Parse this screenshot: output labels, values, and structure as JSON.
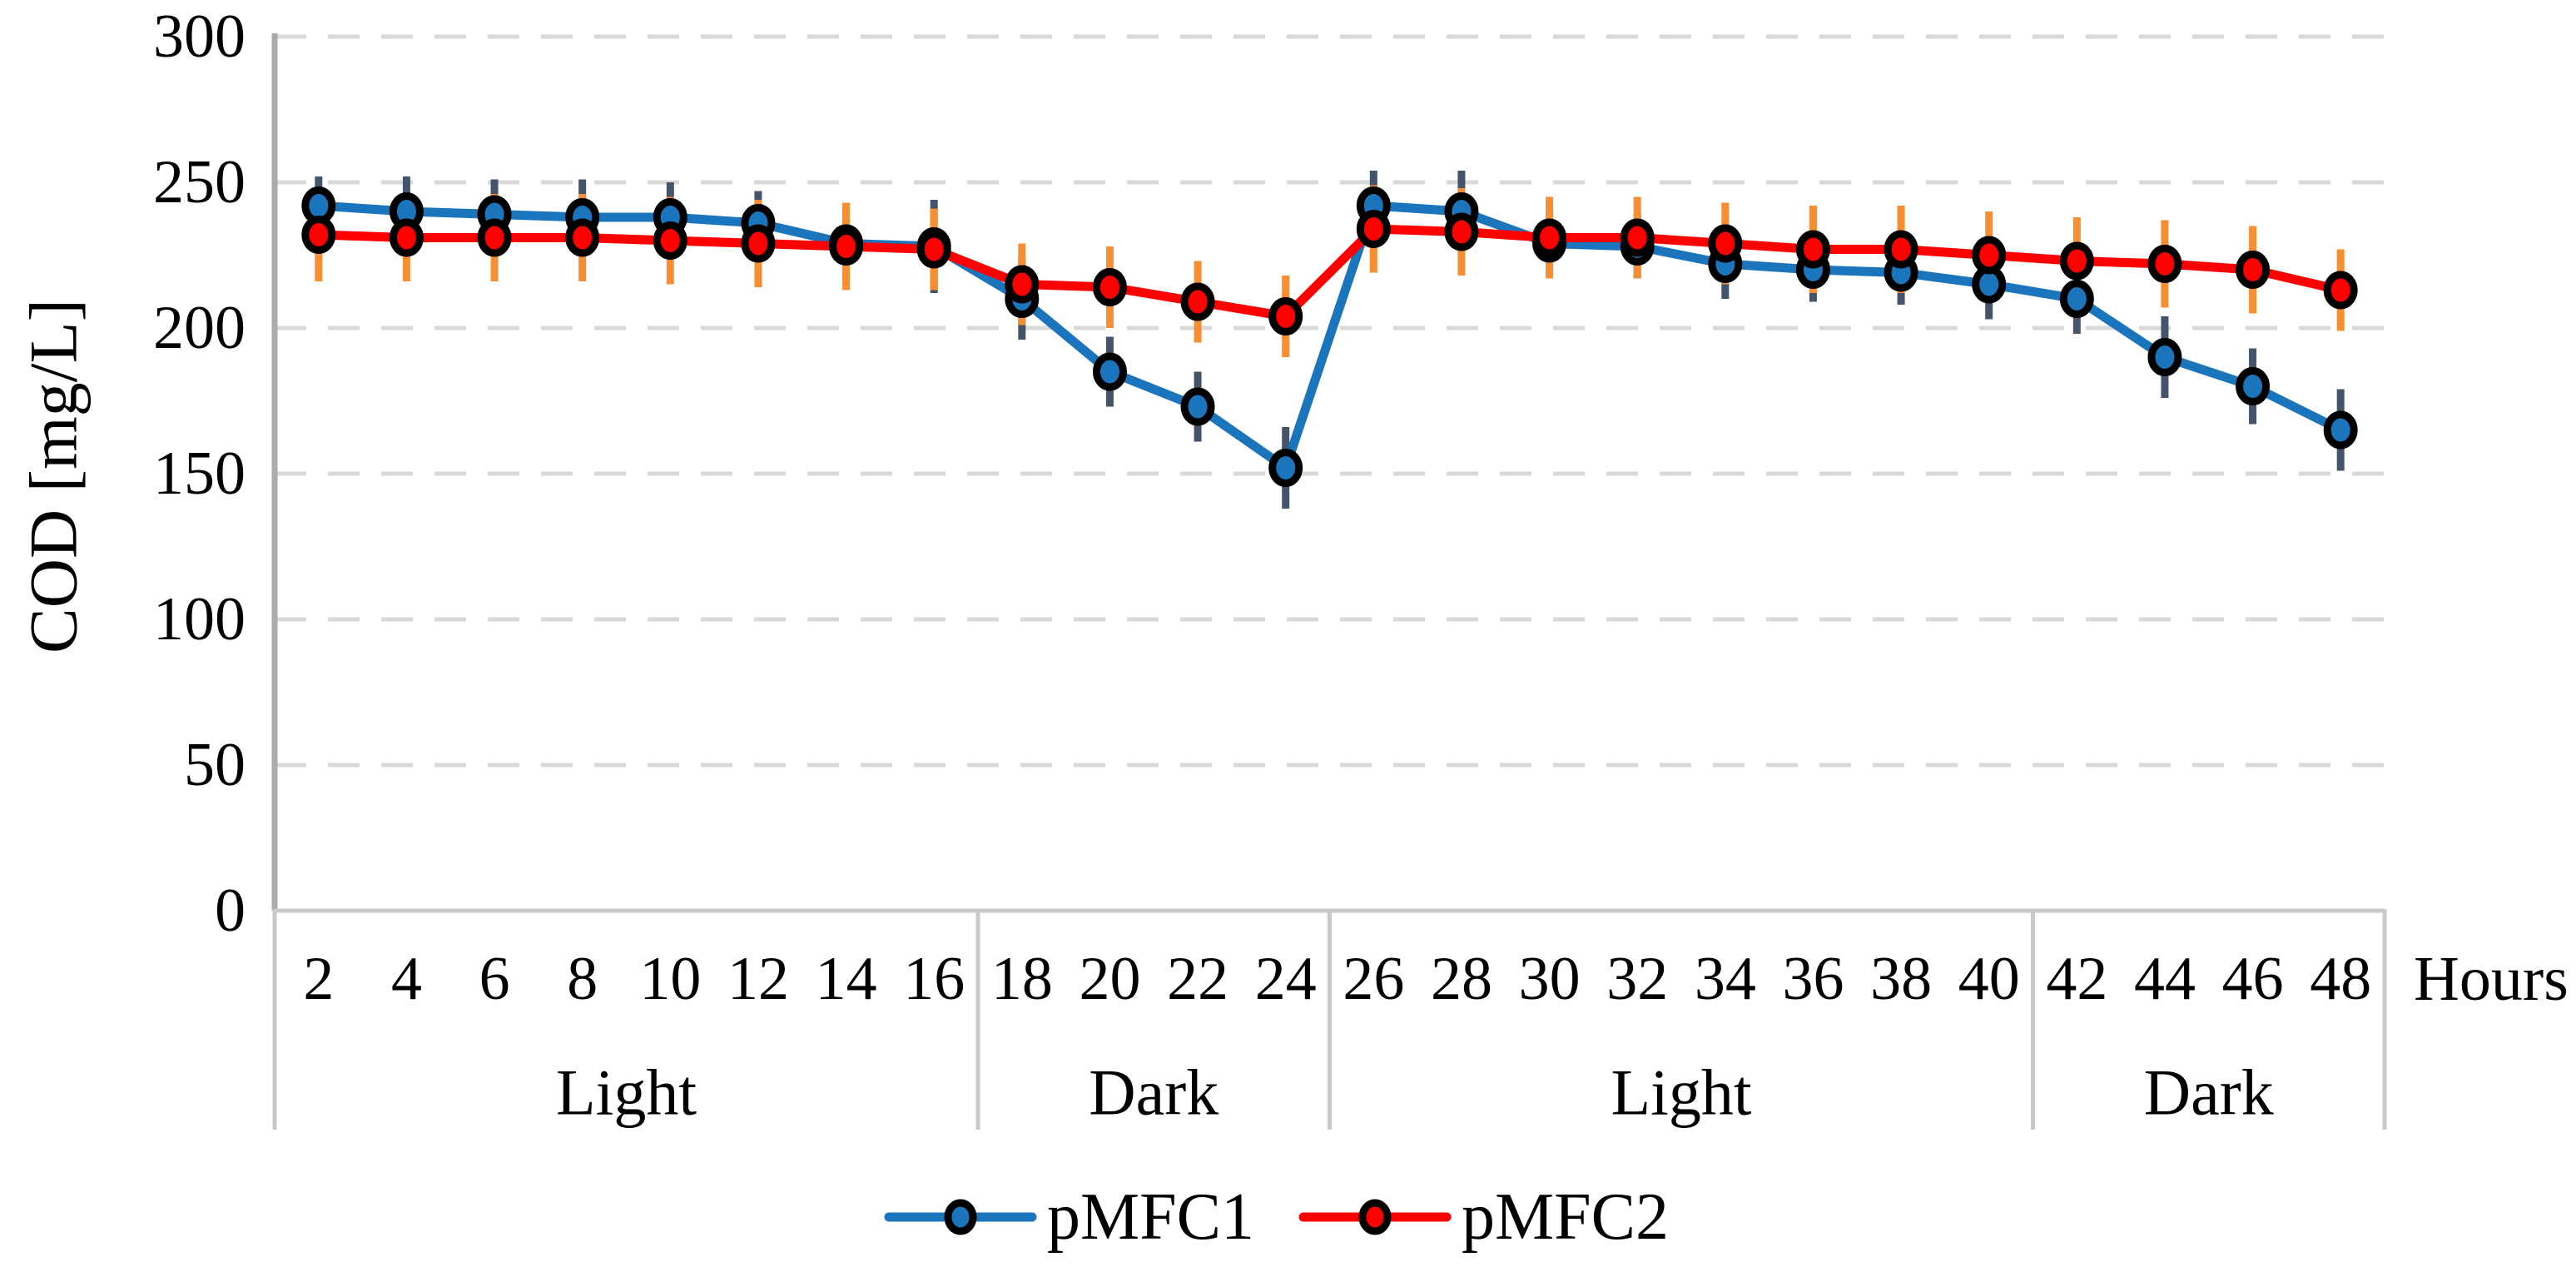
{
  "chart_data": {
    "type": "line",
    "title": "",
    "xlabel": "Hours",
    "ylabel": "COD [mg/L]",
    "x_categories": [
      2,
      4,
      6,
      8,
      10,
      12,
      14,
      16,
      18,
      20,
      22,
      24,
      26,
      28,
      30,
      32,
      34,
      36,
      38,
      40,
      42,
      44,
      46,
      48
    ],
    "y_ticks": [
      0,
      50,
      100,
      150,
      200,
      250,
      300
    ],
    "ylim": [
      0,
      300
    ],
    "grid": "horizontal-dashed",
    "x_groups": [
      {
        "label": "Light",
        "count": 8
      },
      {
        "label": "Dark",
        "count": 4
      },
      {
        "label": "Light",
        "count": 8
      },
      {
        "label": "Dark",
        "count": 4
      }
    ],
    "series": [
      {
        "name": "pMFC1",
        "color": "#1B75BC",
        "error_color": "#44546A",
        "values": [
          242,
          240,
          239,
          238,
          238,
          236,
          229,
          228,
          210,
          185,
          173,
          152,
          242,
          240,
          229,
          228,
          222,
          220,
          219,
          215,
          210,
          190,
          180,
          165
        ],
        "errors": [
          10,
          12,
          12,
          13,
          12,
          11,
          12,
          16,
          14,
          12,
          12,
          14,
          12,
          14,
          11,
          11,
          12,
          11,
          11,
          12,
          12,
          14,
          13,
          14
        ]
      },
      {
        "name": "pMFC2",
        "color": "#FE0000",
        "error_color": "#F78E33",
        "values": [
          232,
          231,
          231,
          231,
          230,
          229,
          228,
          227,
          215,
          214,
          209,
          204,
          234,
          233,
          231,
          231,
          229,
          227,
          227,
          225,
          223,
          222,
          220,
          213
        ],
        "errors": [
          16,
          15,
          15,
          15,
          15,
          15,
          15,
          14,
          14,
          14,
          14,
          14,
          15,
          15,
          14,
          14,
          14,
          15,
          15,
          15,
          15,
          15,
          15,
          14
        ]
      }
    ],
    "legend": {
      "position": "bottom",
      "items": [
        {
          "label": "pMFC1",
          "color": "#1B75BC"
        },
        {
          "label": "pMFC2",
          "color": "#FE0000"
        }
      ]
    },
    "colors": {
      "background": "#FFFFFF",
      "gridline": "#D9D9D9",
      "axis": "#ACACAC",
      "axis_bottom": "#C9C9C9",
      "divider": "#C9C9C9",
      "marker_outline": "#000000",
      "text": "#000000"
    }
  }
}
